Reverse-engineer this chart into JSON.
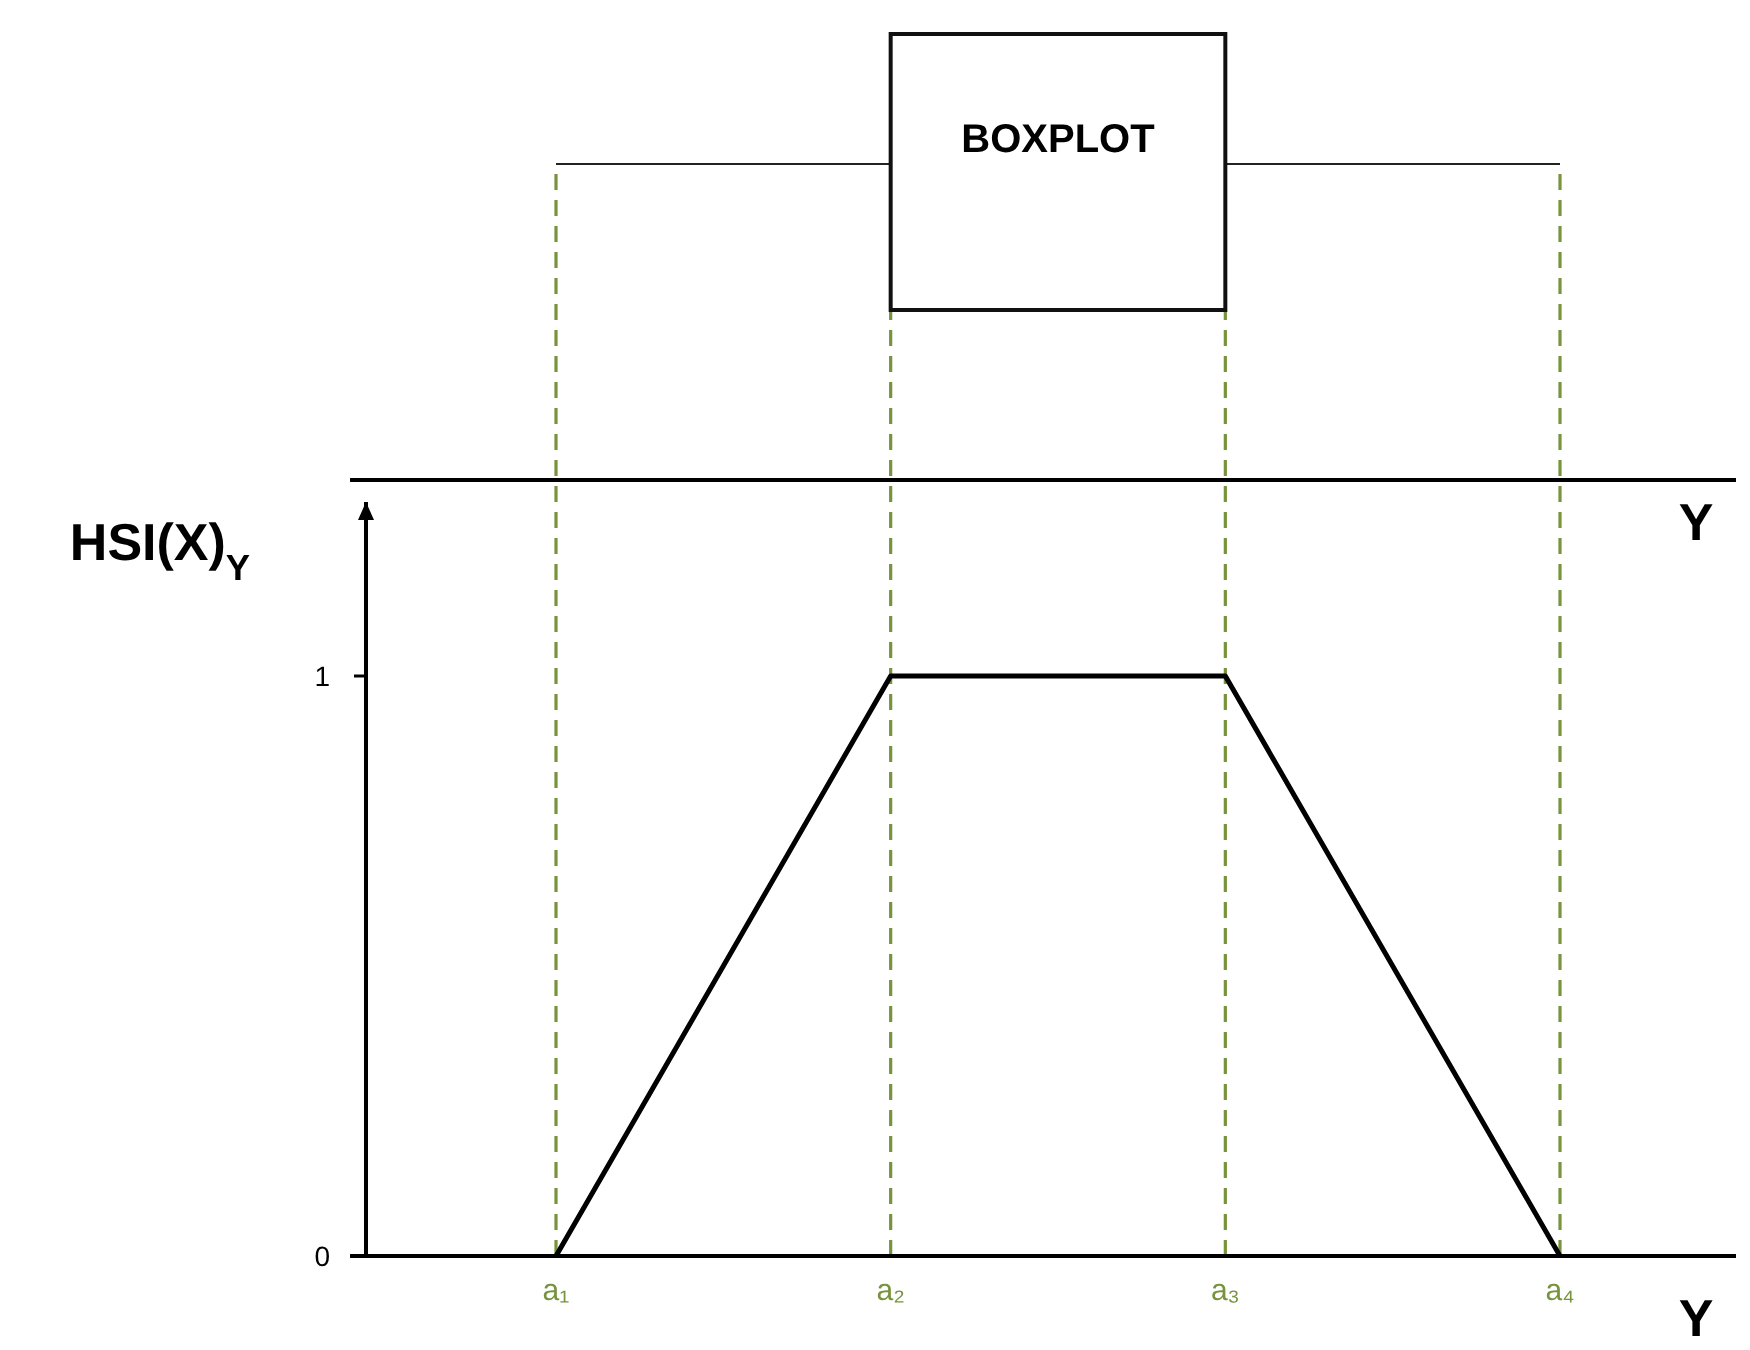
{
  "chart_data": {
    "type": "line",
    "ylabel": "HSI(X)$_{Y}$",
    "xlabel": "Y",
    "categories": [
      "a₁",
      "a₂",
      "a₃",
      "a₄"
    ],
    "series": [
      {
        "color": "#000000",
        "values": [
          0,
          1,
          1,
          0
        ]
      }
    ],
    "ylim": [
      0,
      1.3
    ],
    "yticks": [
      0,
      1
    ],
    "ref_lines": [
      {
        "axis": "x",
        "value": "a₁",
        "color": "#77933c",
        "line_style": "dashed"
      },
      {
        "axis": "x",
        "value": "a₂",
        "color": "#77933c",
        "line_style": "dashed"
      },
      {
        "axis": "x",
        "value": "a₃",
        "color": "#77933c",
        "line_style": "dashed"
      },
      {
        "axis": "x",
        "value": "a₄",
        "color": "#77933c",
        "line_style": "dashed"
      }
    ],
    "annotations": [
      "BOXPLOT",
      "Y"
    ]
  }
}
